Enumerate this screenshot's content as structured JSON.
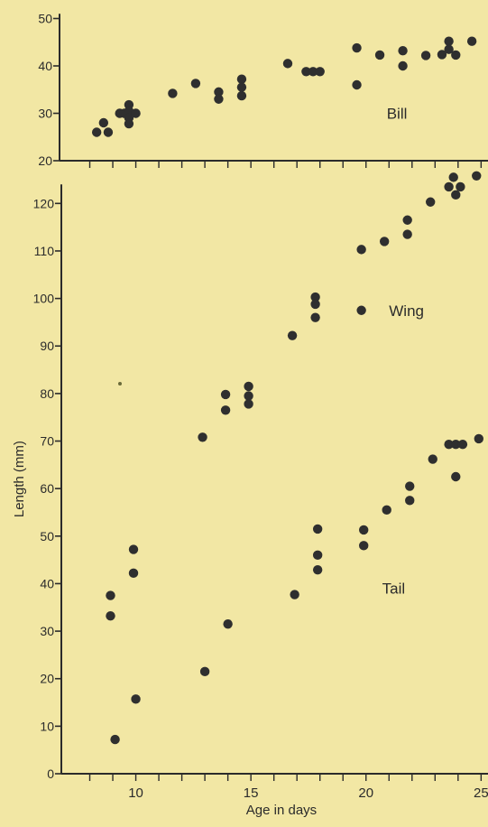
{
  "chart_data": [
    {
      "type": "scatter",
      "title": "",
      "xlabel": "",
      "ylabel": "",
      "xlim": [
        7,
        25.3
      ],
      "ylim": [
        20,
        52
      ],
      "yticks": [
        20,
        30,
        40,
        50
      ],
      "annotations": [
        {
          "text": "Bill",
          "x": 20.9,
          "y": 30
        }
      ],
      "series": [
        {
          "name": "Bill",
          "points": [
            [
              8.3,
              26
            ],
            [
              8.6,
              28
            ],
            [
              8.8,
              26
            ],
            [
              9.3,
              30
            ],
            [
              9.5,
              30
            ],
            [
              9.7,
              31.8
            ],
            [
              9.7,
              30.5
            ],
            [
              9.7,
              29
            ],
            [
              9.7,
              27.8
            ],
            [
              10,
              30
            ],
            [
              11.6,
              34.2
            ],
            [
              12.6,
              36.3
            ],
            [
              13.6,
              34.5
            ],
            [
              13.6,
              33
            ],
            [
              14.6,
              37.2
            ],
            [
              14.6,
              35.5
            ],
            [
              14.6,
              33.7
            ],
            [
              16.6,
              40.5
            ],
            [
              17.4,
              38.8
            ],
            [
              17.7,
              38.8
            ],
            [
              18,
              38.8
            ],
            [
              19.6,
              43.8
            ],
            [
              19.6,
              36
            ],
            [
              20.6,
              42.3
            ],
            [
              21.6,
              43.2
            ],
            [
              21.6,
              40
            ],
            [
              22.6,
              42.2
            ],
            [
              23.3,
              42.4
            ],
            [
              23.6,
              45.2
            ],
            [
              23.6,
              43.5
            ],
            [
              23.9,
              42.3
            ],
            [
              24.6,
              45.2
            ]
          ]
        }
      ]
    },
    {
      "type": "scatter",
      "title": "",
      "xlabel": "Age in days",
      "ylabel": "Length (mm)",
      "xlim": [
        7,
        25.3
      ],
      "ylim": [
        0,
        125
      ],
      "xticks": [
        10,
        15,
        20,
        25
      ],
      "yticks": [
        0,
        10,
        20,
        30,
        40,
        50,
        60,
        70,
        80,
        90,
        100,
        110,
        120
      ],
      "annotations": [
        {
          "text": "Wing",
          "x": 21,
          "y": 97.5
        },
        {
          "text": "Tail",
          "x": 20.7,
          "y": 39
        }
      ],
      "series": [
        {
          "name": "Wing",
          "points": [
            [
              12.9,
              70.8
            ],
            [
              13.9,
              79.8
            ],
            [
              13.9,
              76.5
            ],
            [
              14.9,
              81.5
            ],
            [
              14.9,
              79.5
            ],
            [
              14.9,
              77.8
            ],
            [
              16.8,
              92.2
            ],
            [
              17.8,
              100.3
            ],
            [
              17.8,
              98.8
            ],
            [
              17.8,
              96
            ],
            [
              19.8,
              110.3
            ],
            [
              20.8,
              112
            ],
            [
              21.8,
              116.5
            ],
            [
              21.8,
              113.5
            ],
            [
              22.8,
              120.3
            ],
            [
              23.6,
              123.5
            ],
            [
              23.8,
              125.5
            ],
            [
              23.9,
              121.8
            ],
            [
              24.1,
              123.5
            ],
            [
              24.8,
              125.8
            ]
          ]
        },
        {
          "name": "Tail",
          "points": [
            [
              8.9,
              37.5
            ],
            [
              8.9,
              33.2
            ],
            [
              9.1,
              7.2
            ],
            [
              9.9,
              47.2
            ],
            [
              9.9,
              42.2
            ],
            [
              10,
              15.7
            ],
            [
              13,
              21.5
            ],
            [
              14,
              31.5
            ],
            [
              16.9,
              37.7
            ],
            [
              17.9,
              51.5
            ],
            [
              17.9,
              46
            ],
            [
              17.9,
              42.9
            ],
            [
              19.9,
              51.3
            ],
            [
              19.9,
              48
            ],
            [
              20.9,
              55.5
            ],
            [
              21.9,
              60.5
            ],
            [
              21.9,
              57.5
            ],
            [
              22.9,
              66.2
            ],
            [
              23.6,
              69.3
            ],
            [
              23.9,
              69.3
            ],
            [
              23.9,
              62.5
            ],
            [
              24.2,
              69.3
            ],
            [
              24.9,
              70.5
            ]
          ]
        }
      ]
    }
  ],
  "colors": {
    "background": "#f2e7a4",
    "marker": "#2f2f2f",
    "axis": "#2b2b2b"
  }
}
